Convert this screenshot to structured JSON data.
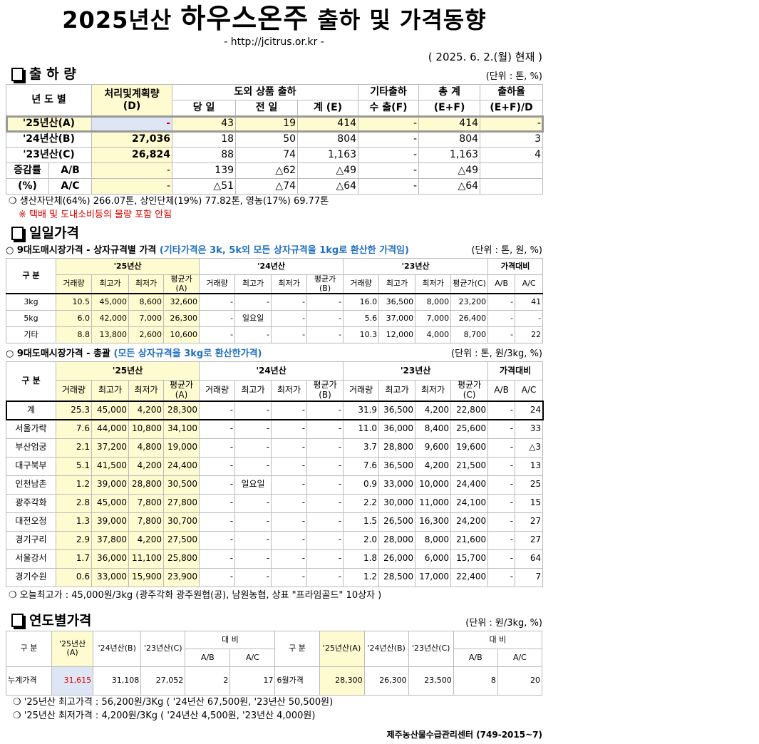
{
  "header": {
    "title_pre": "2025년산 ",
    "title_main": "하우스온주",
    "title_post": " 출하 및 가격동향",
    "url": "- http://jcitrus.or.kr -",
    "date": "( 2025. 6.  2.(월) 현재 )"
  },
  "shipment": {
    "title": "출 하 량",
    "unit": "(단위 : 톤, %)",
    "headers": {
      "year": "년 도 별",
      "plan": "처리및계획량",
      "plan_sub": "(D)",
      "outside": "도외 상품 출하",
      "today": "당 일",
      "prev": "전 일",
      "total_e": "계 (E)",
      "other": "기타출하",
      "export": "수 출(F)",
      "grand": "총   계",
      "grand_sub": "(E+F)",
      "rate": "출하율",
      "rate_sub": "(E+F)/D"
    },
    "rows": [
      [
        "'25년산(A)",
        "-",
        "43",
        "19",
        "414",
        "-",
        "414",
        "-"
      ],
      [
        "'24년산(B)",
        "27,036",
        "18",
        "50",
        "804",
        "-",
        "804",
        "3"
      ],
      [
        "'23년산(C)",
        "26,824",
        "88",
        "74",
        "1,163",
        "-",
        "1,163",
        "4"
      ]
    ],
    "change_label": "증감률",
    "change_pct": "(%)",
    "change_rows": [
      [
        "A/B",
        "-",
        "139",
        "△62",
        "△49",
        "-",
        "△49",
        ""
      ],
      [
        "A/C",
        "-",
        "△51",
        "△74",
        "△64",
        "-",
        "△64",
        ""
      ]
    ],
    "note1": "❍ 생산자단체(64%) 266.07톤, 상인단체(19%) 77.82톤, 영농(17%) 69.77톤",
    "note2": "※ 택배 및 도내소비등의 물량 포함 안됨"
  },
  "daily": {
    "title": "일일가격",
    "sub1": "○ 9대도매시장가격 - 상자규격별 가격 ",
    "sub1_blue": "(기타가격은 3k, 5k외 모든 상자규격을 1kg로 환산한 가격임)",
    "unit1": "(단위 : 톤,  원, %)",
    "groups": [
      "구  분",
      "'25년산",
      "'24년산",
      "'23년산",
      "가격대비"
    ],
    "cols": [
      "거래량",
      "최고가",
      "최저가",
      "평균가(A)",
      "거래량",
      "최고가",
      "최저가",
      "평균가(B)",
      "거래량",
      "최고가",
      "최저가",
      "평균가(C)",
      "A/B",
      "A/C"
    ],
    "rows1": [
      [
        "3kg",
        "10.5",
        "45,000",
        "8,600",
        "32,600",
        "-",
        "-",
        "-",
        "-",
        "16.0",
        "36,500",
        "8,000",
        "23,200",
        "-",
        "41"
      ],
      [
        "5kg",
        "6.0",
        "42,000",
        "7,000",
        "26,300",
        "-",
        "일요일",
        "-",
        "-",
        "5.6",
        "37,000",
        "7,000",
        "26,400",
        "-",
        "-"
      ],
      [
        "기타",
        "8.8",
        "13,800",
        "2,600",
        "10,600",
        "-",
        "-",
        "-",
        "-",
        "10.3",
        "12,000",
        "4,000",
        "8,700",
        "-",
        "22"
      ]
    ],
    "sub2": "○ 9대도매시장가격 - 총괄 ",
    "sub2_blue": "(모든 상자규격을 3kg로 환산한가격)",
    "unit2": "(단위 : 톤, 원/3kg, %)",
    "rows2": [
      [
        "계",
        "25.3",
        "45,000",
        "4,200",
        "28,300",
        "-",
        "-",
        "-",
        "-",
        "31.9",
        "36,500",
        "4,200",
        "22,800",
        "-",
        "24"
      ],
      [
        "서울가락",
        "7.6",
        "44,000",
        "10,800",
        "34,100",
        "-",
        "-",
        "-",
        "-",
        "11.0",
        "36,000",
        "8,400",
        "25,600",
        "-",
        "33"
      ],
      [
        "부산엄궁",
        "2.1",
        "37,200",
        "4,800",
        "19,000",
        "-",
        "-",
        "-",
        "-",
        "3.7",
        "28,800",
        "9,600",
        "19,600",
        "-",
        "△3"
      ],
      [
        "대구북부",
        "5.1",
        "41,500",
        "4,200",
        "24,400",
        "-",
        "-",
        "-",
        "-",
        "7.6",
        "36,500",
        "4,200",
        "21,500",
        "-",
        "13"
      ],
      [
        "인천남촌",
        "1.2",
        "39,000",
        "28,800",
        "30,500",
        "-",
        "일요일",
        "-",
        "-",
        "0.9",
        "33,000",
        "10,000",
        "24,400",
        "-",
        "25"
      ],
      [
        "광주각화",
        "2.8",
        "45,000",
        "7,800",
        "27,800",
        "-",
        "-",
        "-",
        "-",
        "2.2",
        "30,000",
        "11,000",
        "24,100",
        "-",
        "15"
      ],
      [
        "대전오정",
        "1.3",
        "39,000",
        "7,800",
        "30,700",
        "-",
        "-",
        "-",
        "-",
        "1.5",
        "26,500",
        "16,300",
        "24,200",
        "-",
        "27"
      ],
      [
        "경기구리",
        "2.9",
        "37,800",
        "4,200",
        "27,500",
        "-",
        "-",
        "-",
        "-",
        "2.0",
        "28,000",
        "8,000",
        "21,600",
        "-",
        "27"
      ],
      [
        "서울강서",
        "1.7",
        "36,000",
        "11,100",
        "25,800",
        "-",
        "-",
        "-",
        "-",
        "1.8",
        "26,000",
        "6,000",
        "15,700",
        "-",
        "64"
      ],
      [
        "경기수원",
        "0.6",
        "33,000",
        "15,900",
        "23,900",
        "-",
        "-",
        "-",
        "-",
        "1.2",
        "28,500",
        "17,000",
        "22,400",
        "-",
        "7"
      ]
    ],
    "note": "❍ 오늘최고가 : 45,000원/3kg (광주각화  광주원협(공),  남원농협,  상표 \"프라임골드\" 10상자 )"
  },
  "yearly": {
    "title": "연도별가격",
    "unit": "(단위 : 원/3kg, %)",
    "h": {
      "div": "구      분",
      "a": "'25년산(A)",
      "b": "'24년산(B)",
      "c": "'23년산(C)",
      "cmp": "대      비",
      "ab": "A/B",
      "ac": "A/C"
    },
    "row": {
      "label1": "누계가격",
      "v1": [
        "31,615",
        "31,108",
        "27,052",
        "2",
        "17"
      ],
      "label2": "6월가격",
      "v2": [
        "28,300",
        "26,300",
        "23,500",
        "8",
        "20"
      ]
    },
    "note1": "❍  '25년산 최고가격 :  56,200원/3Kg ( '24년산 67,500원,  '23년산 50,500원)",
    "note2": "❍  '25년산 최저가격 :  4,200원/3Kg ( '24년산 4,500원,  '23년산 4,000원)"
  },
  "footer": "제주농산물수급관리센터 (749-2015~7)",
  "colors": {
    "highlight_yellow": "#fffbd0",
    "highlight_blue": "#dce6f4",
    "red": "#d00000",
    "blue_note": "#1f6fbf"
  }
}
